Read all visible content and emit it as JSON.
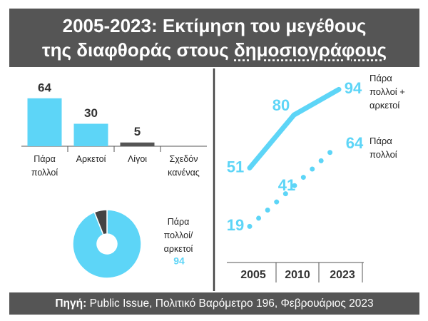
{
  "title": {
    "line1": "2005-2023: Εκτίμηση του μεγέθους",
    "line2": "της διαφθοράς στους",
    "line2_underlined": "δημοσιογράφους"
  },
  "source": {
    "label": "Πηγή:",
    "text": "Public Issue, Πολιτικό Βαρόμετρο 196, Φεβρουάριος 2023"
  },
  "chart_data": [
    {
      "type": "bar",
      "categories": [
        "Πάρα πολλοί",
        "Αρκετοί",
        "Λίγοι",
        "Σχεδόν κανένας"
      ],
      "values": [
        64,
        30,
        5,
        null
      ],
      "colors": [
        "#5dd5f7",
        "#5dd5f7",
        "#555555",
        "#555555"
      ]
    },
    {
      "type": "pie",
      "donut": true,
      "categories": [
        "Πάρα πολλοί/ αρκετοί",
        null
      ],
      "values": [
        94,
        6
      ],
      "colors": [
        "#5dd5f7",
        "#444444"
      ]
    },
    {
      "type": "line",
      "categories": [
        "2005",
        "2010",
        "2023"
      ],
      "series": [
        {
          "name": "Πάρα πολλοί + αρκετοί",
          "color": "#5dd5f7",
          "style": "solid",
          "values": [
            51,
            80,
            94
          ]
        },
        {
          "name": "Πάρα πολλοί",
          "color": "#5dd5f7",
          "style": "dotted",
          "values": [
            19,
            41,
            64
          ]
        }
      ]
    }
  ]
}
